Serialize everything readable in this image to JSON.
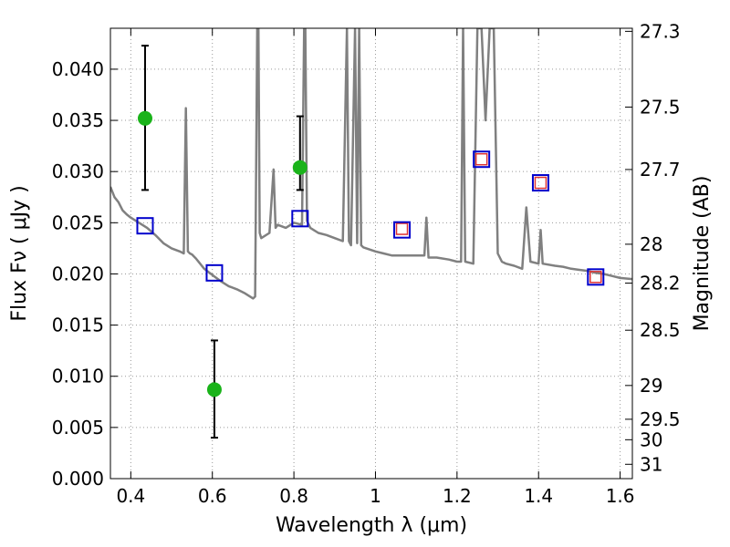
{
  "chart_data": {
    "type": "line",
    "xlabel": "Wavelength  λ (μm)",
    "ylabel": "Flux  Fν  ( μJy )",
    "ylabel_right": "Magnitude (AB)",
    "xlim": [
      0.35,
      1.63
    ],
    "ylim": [
      0.0,
      0.044
    ],
    "grid": true,
    "x_ticks": [
      0.4,
      0.6,
      0.8,
      1.0,
      1.2,
      1.4,
      1.6
    ],
    "x_tick_labels": [
      "0.4",
      "0.6",
      "0.8",
      "1",
      "1.2",
      "1.4",
      "1.6"
    ],
    "y_ticks": [
      0.0,
      0.005,
      0.01,
      0.015,
      0.02,
      0.025,
      0.03,
      0.035,
      0.04
    ],
    "y_tick_labels": [
      "0.000",
      "0.005",
      "0.010",
      "0.015",
      "0.020",
      "0.025",
      "0.030",
      "0.035",
      "0.040"
    ],
    "right_ticks": [
      {
        "label": "27.3",
        "flux": 0.0437
      },
      {
        "label": "27.5",
        "flux": 0.0363
      },
      {
        "label": "27.7",
        "flux": 0.0302
      },
      {
        "label": "28",
        "flux": 0.0229
      },
      {
        "label": "28.2",
        "flux": 0.0191
      },
      {
        "label": "28.5",
        "flux": 0.0145
      },
      {
        "label": "29",
        "flux": 0.0091
      },
      {
        "label": "29.5",
        "flux": 0.0058
      },
      {
        "label": "30",
        "flux": 0.0038
      },
      {
        "label": "31",
        "flux": 0.0014
      }
    ],
    "colors": {
      "model": "#808080",
      "photometry": "#1ab31a",
      "model_squares": "#0000cc",
      "observed_squares": "#dd3333",
      "errorbar": "#000000",
      "grid": "#999999"
    },
    "series": [
      {
        "kind": "model-spectrum",
        "x": [
          0.35,
          0.36,
          0.37,
          0.38,
          0.39,
          0.4,
          0.42,
          0.44,
          0.46,
          0.48,
          0.5,
          0.52,
          0.53,
          0.535,
          0.54,
          0.545,
          0.55,
          0.56,
          0.58,
          0.6,
          0.62,
          0.64,
          0.66,
          0.68,
          0.7,
          0.705,
          0.71,
          0.713,
          0.716,
          0.72,
          0.74,
          0.75,
          0.755,
          0.76,
          0.78,
          0.8,
          0.82,
          0.825,
          0.828,
          0.832,
          0.84,
          0.86,
          0.88,
          0.9,
          0.92,
          0.93,
          0.935,
          0.94,
          0.95,
          0.955,
          0.96,
          0.965,
          0.97,
          1.0,
          1.02,
          1.04,
          1.06,
          1.08,
          1.1,
          1.12,
          1.125,
          1.13,
          1.15,
          1.18,
          1.2,
          1.21,
          1.215,
          1.22,
          1.24,
          1.25,
          1.255,
          1.26,
          1.27,
          1.28,
          1.29,
          1.3,
          1.31,
          1.32,
          1.34,
          1.36,
          1.37,
          1.38,
          1.4,
          1.405,
          1.41,
          1.44,
          1.46,
          1.48,
          1.5,
          1.52,
          1.54,
          1.56,
          1.58,
          1.6,
          1.63
        ],
        "y": [
          0.0285,
          0.0275,
          0.027,
          0.0262,
          0.0258,
          0.0255,
          0.025,
          0.0245,
          0.0238,
          0.023,
          0.0225,
          0.0222,
          0.022,
          0.0362,
          0.0222,
          0.022,
          0.0219,
          0.0215,
          0.0205,
          0.0199,
          0.0193,
          0.0188,
          0.0185,
          0.0181,
          0.0176,
          0.0178,
          0.044,
          0.044,
          0.024,
          0.0235,
          0.024,
          0.0302,
          0.0245,
          0.0248,
          0.0245,
          0.025,
          0.0248,
          0.044,
          0.044,
          0.0252,
          0.0245,
          0.024,
          0.0238,
          0.0235,
          0.0232,
          0.044,
          0.0232,
          0.0228,
          0.044,
          0.023,
          0.044,
          0.0228,
          0.0226,
          0.0222,
          0.022,
          0.0218,
          0.0218,
          0.0218,
          0.0218,
          0.0218,
          0.0255,
          0.0216,
          0.0216,
          0.0214,
          0.0212,
          0.0212,
          0.044,
          0.0212,
          0.021,
          0.044,
          0.044,
          0.044,
          0.035,
          0.044,
          0.044,
          0.022,
          0.0212,
          0.021,
          0.0208,
          0.0205,
          0.0265,
          0.0212,
          0.021,
          0.0243,
          0.021,
          0.0208,
          0.0207,
          0.0205,
          0.0204,
          0.0203,
          0.0201,
          0.02,
          0.0198,
          0.0196,
          0.0195
        ]
      },
      {
        "kind": "photometry",
        "x": [
          0.435,
          0.605,
          0.815
        ],
        "y": [
          0.0352,
          0.0087,
          0.0304
        ],
        "err_low": [
          0.0282,
          0.004,
          0.0282
        ],
        "err_high": [
          0.0423,
          0.0135,
          0.0354
        ]
      },
      {
        "kind": "model-squares",
        "x": [
          0.435,
          0.605,
          0.815,
          1.065,
          1.26,
          1.405,
          1.54
        ],
        "y": [
          0.0247,
          0.0201,
          0.0254,
          0.0243,
          0.0312,
          0.0289,
          0.0197
        ]
      },
      {
        "kind": "observed-squares",
        "x": [
          1.065,
          1.26,
          1.405,
          1.54
        ],
        "y": [
          0.0244,
          0.0312,
          0.0289,
          0.0197
        ]
      }
    ]
  }
}
